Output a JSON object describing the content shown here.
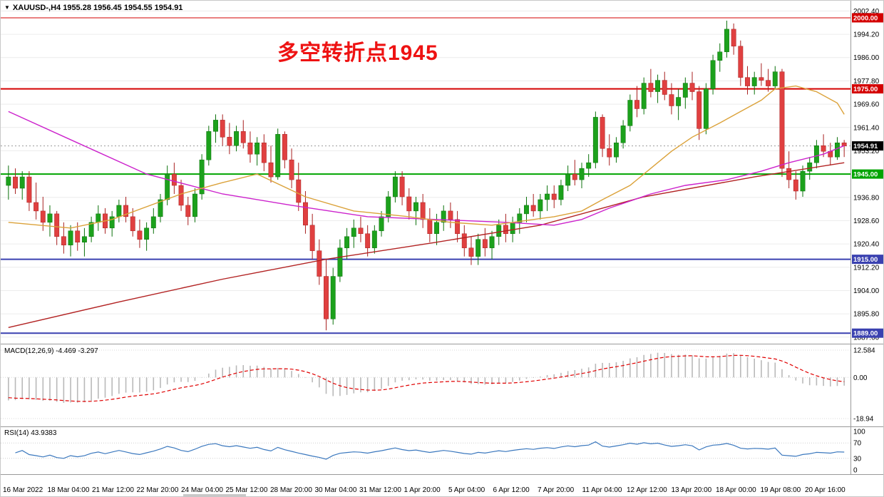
{
  "window": {
    "symbol_info": "XAUUSD-,H4 1955.28 1956.45 1954.55 1954.91"
  },
  "annotation": {
    "text": "多空转折点1945",
    "color": "#ee1212"
  },
  "indicators": {
    "macd": {
      "label": "MACD(12,26,9) -4.469 -3.297",
      "fast": 12,
      "slow": 26,
      "signal": 9,
      "value": -4.469,
      "signal_value": -3.297
    },
    "rsi": {
      "label": "RSI(14) 43.9383",
      "period": 14,
      "value": 43.9383
    }
  },
  "chart_data": {
    "type": "candlestick",
    "symbol": "XAUUSD-",
    "timeframe": "H4",
    "title": "多空转折点1945",
    "price_axis_labels": [
      "2002.40",
      "1994.20",
      "1986.00",
      "1977.80",
      "1969.60",
      "1961.40",
      "1953.20",
      "1945.00",
      "1936.80",
      "1928.60",
      "1920.40",
      "1912.20",
      "1904.00",
      "1895.80",
      "1887.60"
    ],
    "time_labels": [
      "16 Mar 2022",
      "18 Mar 04:00",
      "21 Mar 12:00",
      "22 Mar 20:00",
      "24 Mar 04:00",
      "25 Mar 12:00",
      "28 Mar 20:00",
      "30 Mar 04:00",
      "31 Mar 12:00",
      "1 Apr 20:00",
      "5 Apr 04:00",
      "6 Apr 12:00",
      "7 Apr 20:00",
      "11 Apr 04:00",
      "12 Apr 12:00",
      "13 Apr 20:00",
      "18 Apr 00:00",
      "19 Apr 08:00",
      "20 Apr 16:00"
    ],
    "hlines": [
      {
        "price": 2000.0,
        "label": "2000.00",
        "color": "#d40000",
        "width": 1
      },
      {
        "price": 1975.0,
        "label": "1975.00",
        "color": "#d40000",
        "width": 2
      },
      {
        "price": 1945.0,
        "label": "1945.00",
        "color": "#00a400",
        "width": 2
      },
      {
        "price": 1915.0,
        "label": "1915.00",
        "color": "#3a41b0",
        "width": 2
      },
      {
        "price": 1889.0,
        "label": "1889.00",
        "color": "#3a41b0",
        "width": 2
      }
    ],
    "current_price": {
      "price": 1954.91,
      "label": "1954.91",
      "bg": "#000000"
    },
    "ohlc": [
      [
        1941,
        1948,
        1936,
        1944
      ],
      [
        1944,
        1947,
        1938,
        1940
      ],
      [
        1940,
        1946,
        1936,
        1944
      ],
      [
        1944,
        1946,
        1932,
        1935
      ],
      [
        1935,
        1942,
        1929,
        1932
      ],
      [
        1932,
        1937,
        1925,
        1928
      ],
      [
        1928,
        1934,
        1923,
        1931
      ],
      [
        1931,
        1932,
        1920,
        1923
      ],
      [
        1923,
        1928,
        1917,
        1920
      ],
      [
        1920,
        1927,
        1916,
        1925
      ],
      [
        1925,
        1928,
        1918,
        1921
      ],
      [
        1921,
        1926,
        1916,
        1923
      ],
      [
        1923,
        1930,
        1921,
        1928
      ],
      [
        1928,
        1934,
        1925,
        1931
      ],
      [
        1931,
        1933,
        1924,
        1926
      ],
      [
        1926,
        1932,
        1923,
        1930
      ],
      [
        1930,
        1936,
        1928,
        1934
      ],
      [
        1934,
        1937,
        1928,
        1930
      ],
      [
        1930,
        1933,
        1923,
        1925
      ],
      [
        1925,
        1929,
        1919,
        1922
      ],
      [
        1922,
        1928,
        1918,
        1926
      ],
      [
        1926,
        1933,
        1924,
        1930
      ],
      [
        1930,
        1938,
        1928,
        1936
      ],
      [
        1936,
        1948,
        1934,
        1945
      ],
      [
        1945,
        1949,
        1938,
        1941
      ],
      [
        1941,
        1943,
        1932,
        1934
      ],
      [
        1934,
        1937,
        1927,
        1930
      ],
      [
        1930,
        1940,
        1928,
        1938
      ],
      [
        1938,
        1952,
        1936,
        1950
      ],
      [
        1950,
        1962,
        1948,
        1960
      ],
      [
        1960,
        1966,
        1956,
        1964
      ],
      [
        1964,
        1966,
        1955,
        1958
      ],
      [
        1958,
        1963,
        1952,
        1955
      ],
      [
        1955,
        1962,
        1953,
        1960
      ],
      [
        1960,
        1964,
        1954,
        1956
      ],
      [
        1956,
        1960,
        1949,
        1952
      ],
      [
        1952,
        1958,
        1948,
        1956
      ],
      [
        1956,
        1959,
        1946,
        1949
      ],
      [
        1949,
        1955,
        1942,
        1944
      ],
      [
        1944,
        1961,
        1943,
        1959
      ],
      [
        1959,
        1960,
        1947,
        1950
      ],
      [
        1950,
        1954,
        1940,
        1943
      ],
      [
        1943,
        1949,
        1932,
        1935
      ],
      [
        1935,
        1939,
        1924,
        1927
      ],
      [
        1927,
        1931,
        1915,
        1918
      ],
      [
        1918,
        1922,
        1906,
        1909
      ],
      [
        1909,
        1915,
        1890,
        1894
      ],
      [
        1894,
        1912,
        1892,
        1909
      ],
      [
        1909,
        1922,
        1907,
        1919
      ],
      [
        1919,
        1926,
        1915,
        1923
      ],
      [
        1923,
        1929,
        1919,
        1926
      ],
      [
        1926,
        1930,
        1921,
        1924
      ],
      [
        1924,
        1927,
        1916,
        1919
      ],
      [
        1919,
        1927,
        1917,
        1925
      ],
      [
        1925,
        1932,
        1923,
        1930
      ],
      [
        1930,
        1939,
        1928,
        1937
      ],
      [
        1937,
        1946,
        1935,
        1944
      ],
      [
        1944,
        1946,
        1934,
        1937
      ],
      [
        1937,
        1940,
        1929,
        1932
      ],
      [
        1932,
        1937,
        1927,
        1935
      ],
      [
        1935,
        1938,
        1926,
        1929
      ],
      [
        1929,
        1933,
        1921,
        1924
      ],
      [
        1924,
        1931,
        1920,
        1928
      ],
      [
        1928,
        1934,
        1925,
        1932
      ],
      [
        1932,
        1935,
        1926,
        1929
      ],
      [
        1929,
        1932,
        1921,
        1924
      ],
      [
        1924,
        1927,
        1916,
        1919
      ],
      [
        1919,
        1923,
        1913,
        1916
      ],
      [
        1916,
        1924,
        1913,
        1922
      ],
      [
        1922,
        1926,
        1916,
        1919
      ],
      [
        1919,
        1925,
        1915,
        1923
      ],
      [
        1923,
        1929,
        1920,
        1927
      ],
      [
        1927,
        1931,
        1921,
        1924
      ],
      [
        1924,
        1930,
        1921,
        1928
      ],
      [
        1928,
        1933,
        1924,
        1931
      ],
      [
        1931,
        1937,
        1928,
        1934
      ],
      [
        1934,
        1938,
        1930,
        1932
      ],
      [
        1932,
        1938,
        1929,
        1936
      ],
      [
        1936,
        1941,
        1932,
        1938
      ],
      [
        1938,
        1941,
        1933,
        1936
      ],
      [
        1936,
        1943,
        1934,
        1941
      ],
      [
        1941,
        1948,
        1939,
        1945
      ],
      [
        1945,
        1950,
        1941,
        1943
      ],
      [
        1943,
        1949,
        1940,
        1947
      ],
      [
        1947,
        1952,
        1944,
        1949
      ],
      [
        1949,
        1967,
        1947,
        1965
      ],
      [
        1965,
        1966,
        1951,
        1954
      ],
      [
        1954,
        1959,
        1948,
        1951
      ],
      [
        1951,
        1958,
        1949,
        1956
      ],
      [
        1956,
        1964,
        1954,
        1962
      ],
      [
        1962,
        1973,
        1960,
        1971
      ],
      [
        1971,
        1976,
        1965,
        1968
      ],
      [
        1968,
        1979,
        1966,
        1977
      ],
      [
        1977,
        1982,
        1972,
        1974
      ],
      [
        1974,
        1980,
        1970,
        1978
      ],
      [
        1978,
        1981,
        1971,
        1973
      ],
      [
        1973,
        1977,
        1966,
        1969
      ],
      [
        1969,
        1975,
        1964,
        1972
      ],
      [
        1972,
        1979,
        1968,
        1977
      ],
      [
        1977,
        1981,
        1971,
        1974
      ],
      [
        1974,
        1976,
        1957,
        1961
      ],
      [
        1961,
        1977,
        1959,
        1975
      ],
      [
        1975,
        1987,
        1973,
        1985
      ],
      [
        1985,
        1991,
        1981,
        1988
      ],
      [
        1988,
        1999,
        1986,
        1996
      ],
      [
        1996,
        1998,
        1987,
        1990
      ],
      [
        1990,
        1992,
        1976,
        1979
      ],
      [
        1979,
        1983,
        1973,
        1976
      ],
      [
        1976,
        1981,
        1973,
        1979
      ],
      [
        1979,
        1984,
        1976,
        1978
      ],
      [
        1978,
        1982,
        1974,
        1976
      ],
      [
        1976,
        1983,
        1975,
        1981
      ],
      [
        1981,
        1982,
        1944,
        1947
      ],
      [
        1947,
        1953,
        1940,
        1943
      ],
      [
        1943,
        1946,
        1936,
        1939
      ],
      [
        1939,
        1948,
        1937,
        1946
      ],
      [
        1946,
        1951,
        1943,
        1949
      ],
      [
        1949,
        1957,
        1947,
        1955
      ],
      [
        1955,
        1959,
        1951,
        1953
      ],
      [
        1953,
        1956,
        1948,
        1951
      ],
      [
        1951,
        1958,
        1950,
        1956
      ],
      [
        1956,
        1957,
        1951,
        1954.9
      ]
    ],
    "ma_lines": [
      {
        "name": "ma-long-darkred",
        "color": "#b22222",
        "points": [
          [
            0,
            1891
          ],
          [
            16,
            1900
          ],
          [
            31,
            1908
          ],
          [
            46,
            1915
          ],
          [
            62,
            1921
          ],
          [
            77,
            1927
          ],
          [
            92,
            1937
          ],
          [
            108,
            1944
          ],
          [
            122,
            1949
          ]
        ]
      },
      {
        "name": "ma-mid-magenta",
        "color": "#cc22cc",
        "points": [
          [
            0,
            1967
          ],
          [
            10,
            1956
          ],
          [
            20,
            1945
          ],
          [
            31,
            1938
          ],
          [
            41,
            1934
          ],
          [
            52,
            1930
          ],
          [
            62,
            1929
          ],
          [
            72,
            1928
          ],
          [
            79,
            1927
          ],
          [
            83,
            1929
          ],
          [
            87,
            1933
          ],
          [
            93,
            1938
          ],
          [
            98,
            1941
          ],
          [
            104,
            1943
          ],
          [
            109,
            1946
          ],
          [
            113,
            1949
          ],
          [
            118,
            1952
          ],
          [
            122,
            1955
          ]
        ]
      },
      {
        "name": "ma-fast-orange",
        "color": "#dba23a",
        "points": [
          [
            0,
            1928
          ],
          [
            9,
            1926
          ],
          [
            15,
            1929
          ],
          [
            25,
            1938
          ],
          [
            31,
            1942
          ],
          [
            36,
            1945
          ],
          [
            43,
            1937
          ],
          [
            50,
            1932
          ],
          [
            58,
            1930
          ],
          [
            64,
            1928
          ],
          [
            70,
            1927
          ],
          [
            79,
            1930
          ],
          [
            83,
            1932
          ],
          [
            86,
            1936
          ],
          [
            90,
            1941
          ],
          [
            93,
            1947
          ],
          [
            96,
            1953
          ],
          [
            99,
            1958
          ],
          [
            103,
            1963
          ],
          [
            106,
            1967
          ],
          [
            109,
            1971
          ],
          [
            111,
            1975
          ],
          [
            114,
            1976
          ],
          [
            117,
            1974
          ],
          [
            120,
            1970
          ],
          [
            122,
            1966
          ]
        ]
      }
    ],
    "macd": {
      "seed": {
        "ema12": 1949,
        "ema26": 1960,
        "signal": -9
      },
      "axis": [
        {
          "v": 12.584,
          "label": "12.584"
        },
        {
          "v": 0,
          "label": "0.00"
        },
        {
          "v": -18.94,
          "label": "-18.94"
        }
      ]
    },
    "rsi": {
      "axis": [
        {
          "v": 100,
          "label": "100"
        },
        {
          "v": 70,
          "label": "70"
        },
        {
          "v": 30,
          "label": "30"
        },
        {
          "v": 0,
          "label": "0"
        }
      ]
    },
    "colors": {
      "up": "#1ca11c",
      "up_edge": "#0c720c",
      "down": "#e04040",
      "down_edge": "#a82020",
      "macd_bar": "#b9b9b9",
      "macd_signal": "#e00000",
      "rsi": "#3b78be",
      "grid": "#ececec"
    }
  }
}
